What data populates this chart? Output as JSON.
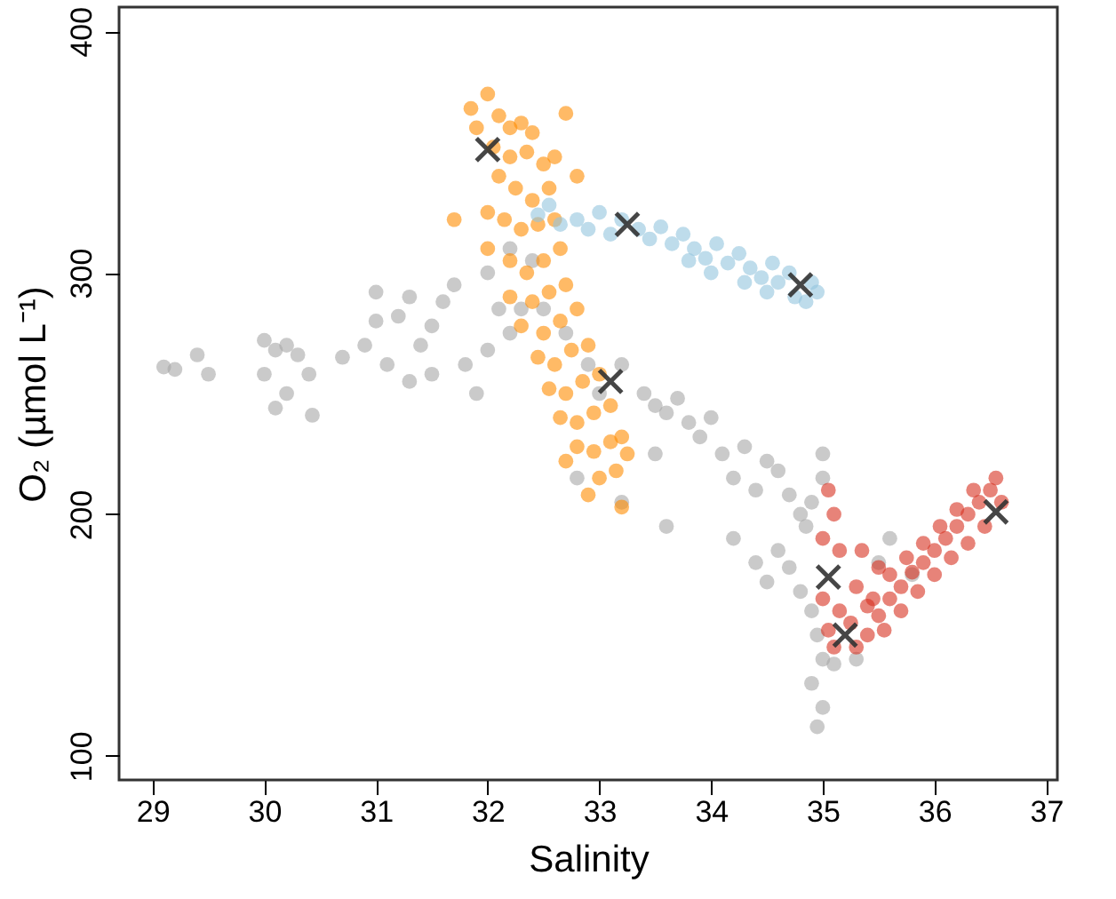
{
  "chart_data": {
    "type": "scatter",
    "xlabel": "Salinity",
    "ylabel": "O₂ (µmol L⁻¹)",
    "xlim": [
      28.7,
      37.1
    ],
    "ylim": [
      90,
      410
    ],
    "xticks": [
      29,
      30,
      31,
      32,
      33,
      34,
      35,
      36,
      37
    ],
    "yticks": [
      100,
      200,
      300,
      400
    ],
    "grid": false,
    "series": [
      {
        "marker": "circle",
        "color": "#a6a6a6",
        "x": [
          29.1,
          29.2,
          29.4,
          29.5,
          30.0,
          30.1,
          30.2,
          30.3,
          30.0,
          30.2,
          30.4,
          30.1,
          30.43,
          30.7,
          30.9,
          31.0,
          31.2,
          31.3,
          31.1,
          31.4,
          31.5,
          31.6,
          31.7,
          31.3,
          31.5,
          31.8,
          32.0,
          31.9,
          32.2,
          32.3,
          32.0,
          32.2,
          32.4,
          32.5,
          32.7,
          32.9,
          33.0,
          33.2,
          33.4,
          33.5,
          33.6,
          33.7,
          33.8,
          33.9,
          34.0,
          34.1,
          34.2,
          34.3,
          34.4,
          34.5,
          34.6,
          34.7,
          34.8,
          34.9,
          35.0,
          35.0,
          34.85,
          34.2,
          34.4,
          34.5,
          34.6,
          34.7,
          34.8,
          34.9,
          34.95,
          35.0,
          34.9,
          35.0,
          34.95,
          35.1,
          35.3,
          35.5,
          35.6,
          35.8,
          33.6,
          33.2,
          33.5,
          32.8,
          31.0,
          32.1
        ],
        "values": [
          261,
          260,
          266,
          258,
          272,
          268,
          270,
          266,
          258,
          250,
          258,
          244,
          241,
          265,
          270,
          280,
          282,
          290,
          262,
          270,
          278,
          288,
          295,
          255,
          258,
          262,
          268,
          250,
          275,
          285,
          300,
          310,
          305,
          285,
          275,
          262,
          250,
          262,
          250,
          245,
          242,
          248,
          238,
          232,
          240,
          225,
          215,
          228,
          210,
          222,
          218,
          208,
          200,
          205,
          215,
          225,
          195,
          190,
          180,
          172,
          185,
          178,
          168,
          160,
          150,
          140,
          130,
          120,
          112,
          138,
          140,
          180,
          190,
          175,
          195,
          205,
          225,
          215,
          292,
          285
        ]
      },
      {
        "marker": "circle",
        "color": "#ff8c00",
        "x": [
          31.85,
          32.0,
          32.1,
          32.2,
          32.3,
          32.4,
          31.9,
          32.05,
          32.2,
          32.35,
          32.5,
          32.6,
          32.7,
          32.8,
          32.1,
          32.25,
          32.4,
          32.55,
          32.0,
          32.15,
          32.3,
          32.45,
          32.6,
          31.7,
          32.0,
          32.2,
          32.35,
          32.5,
          32.65,
          32.2,
          32.4,
          32.55,
          32.7,
          32.3,
          32.5,
          32.65,
          32.8,
          32.45,
          32.6,
          32.75,
          32.9,
          32.55,
          32.7,
          32.85,
          33.0,
          32.65,
          32.8,
          32.95,
          33.1,
          32.8,
          32.95,
          33.1,
          33.2,
          33.0,
          33.15,
          33.25,
          32.7,
          33.2,
          32.9
        ],
        "values": [
          368,
          374,
          365,
          360,
          362,
          358,
          360,
          352,
          348,
          350,
          345,
          348,
          366,
          340,
          340,
          335,
          330,
          335,
          325,
          322,
          318,
          320,
          322,
          322,
          310,
          305,
          300,
          305,
          310,
          290,
          288,
          292,
          295,
          278,
          275,
          280,
          285,
          265,
          262,
          268,
          270,
          252,
          250,
          255,
          258,
          240,
          238,
          242,
          245,
          228,
          226,
          230,
          232,
          215,
          218,
          225,
          222,
          203,
          208
        ]
      },
      {
        "marker": "circle",
        "color": "#92c5de",
        "x": [
          32.45,
          32.55,
          32.65,
          32.8,
          32.9,
          33.0,
          33.1,
          33.2,
          33.35,
          33.45,
          33.55,
          33.65,
          33.75,
          33.85,
          33.95,
          34.05,
          34.15,
          34.25,
          34.35,
          34.45,
          34.55,
          34.6,
          34.7,
          34.75,
          34.85,
          34.9,
          34.95,
          34.5,
          34.3,
          34.0,
          33.8
        ],
        "values": [
          324,
          328,
          320,
          322,
          318,
          325,
          316,
          322,
          318,
          314,
          319,
          312,
          316,
          310,
          306,
          312,
          304,
          308,
          302,
          298,
          304,
          296,
          300,
          290,
          288,
          296,
          292,
          292,
          296,
          300,
          305
        ]
      },
      {
        "marker": "circle",
        "color": "#d7301f",
        "x": [
          35.05,
          35.1,
          35.0,
          35.15,
          35.05,
          35.0,
          35.15,
          35.05,
          35.2,
          35.3,
          35.1,
          35.4,
          35.5,
          35.6,
          35.7,
          35.8,
          35.9,
          36.0,
          36.1,
          36.2,
          36.3,
          36.4,
          36.5,
          36.55,
          36.6,
          36.45,
          36.3,
          36.15,
          36.0,
          35.85,
          35.7,
          35.55,
          35.45,
          35.6,
          35.75,
          35.9,
          36.05,
          36.2,
          36.35,
          35.5,
          35.3,
          35.35,
          35.25,
          35.4
        ],
        "values": [
          210,
          200,
          190,
          185,
          null,
          165,
          160,
          152,
          null,
          145,
          145,
          150,
          158,
          165,
          170,
          176,
          180,
          185,
          190,
          195,
          200,
          205,
          210,
          215,
          205,
          195,
          188,
          182,
          175,
          168,
          160,
          152,
          165,
          175,
          182,
          188,
          195,
          202,
          210,
          178,
          170,
          185,
          155,
          162
        ]
      },
      {
        "marker": "cross",
        "color": "#333333",
        "x": [
          32.0,
          33.25,
          34.8,
          33.1,
          35.05,
          35.2,
          36.55
        ],
        "values": [
          351,
          320,
          295,
          255,
          174,
          150,
          201
        ]
      }
    ]
  }
}
